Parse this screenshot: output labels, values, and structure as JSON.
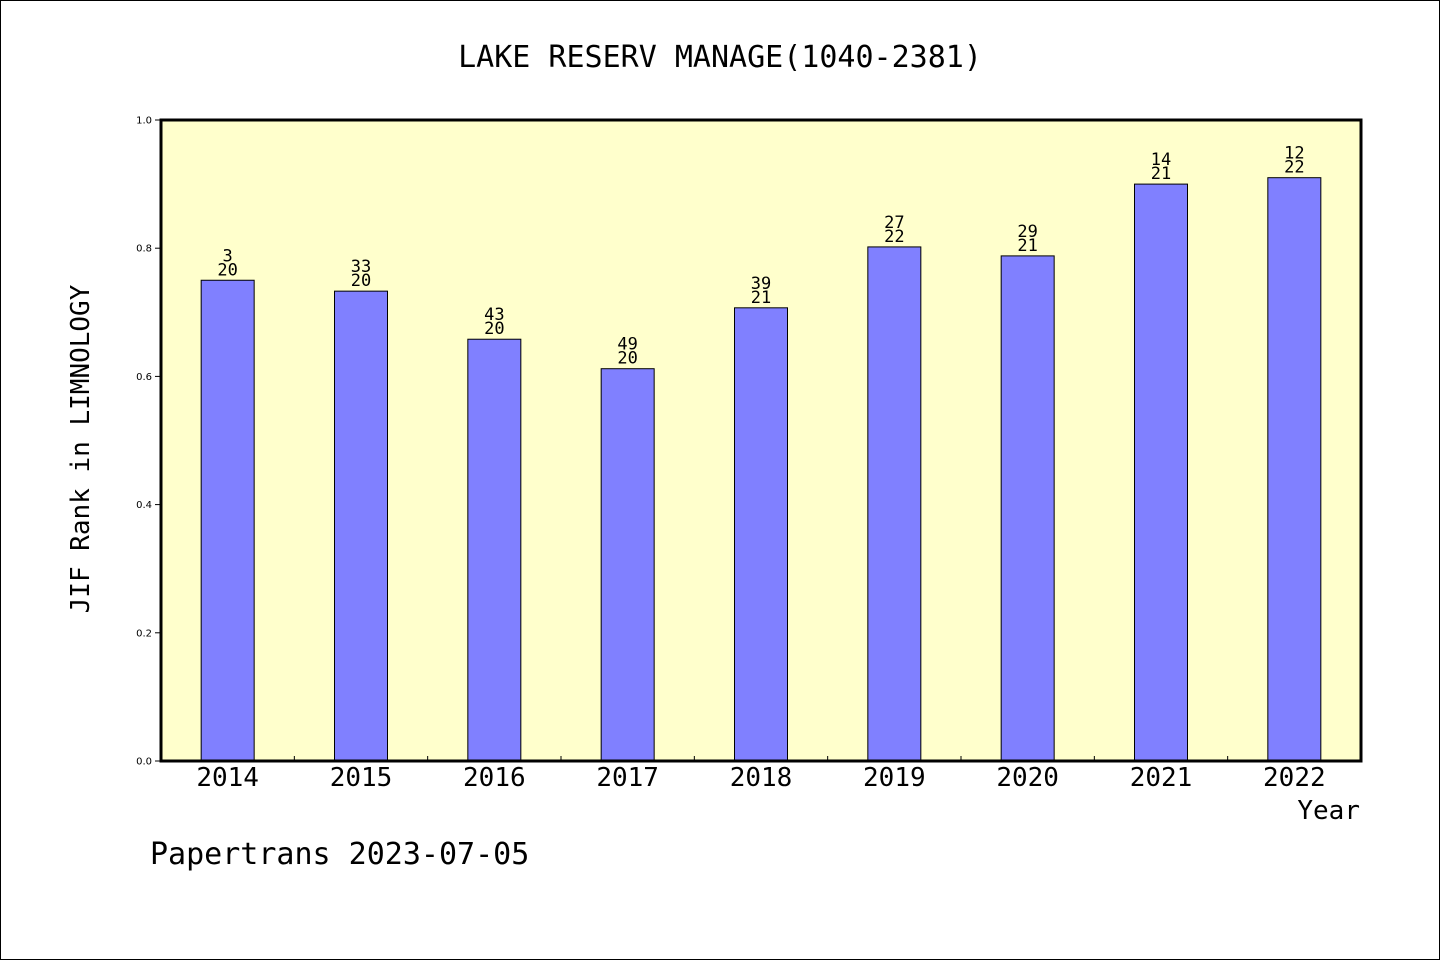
{
  "chart_data": {
    "type": "bar",
    "title": "LAKE RESERV MANAGE(1040-2381)",
    "xlabel": "Year",
    "ylabel": "JIF Rank in LIMNOLOGY",
    "ylim": [
      0,
      1.0
    ],
    "yticks": [
      "0.0",
      "0.2",
      "0.4",
      "0.6",
      "0.8",
      "1.0"
    ],
    "categories": [
      "2014",
      "2015",
      "2016",
      "2017",
      "2018",
      "2019",
      "2020",
      "2021",
      "2022"
    ],
    "values": [
      0.75,
      0.733,
      0.658,
      0.612,
      0.707,
      0.802,
      0.788,
      0.9,
      0.91
    ],
    "data_labels": [
      {
        "top": "3",
        "bottom": "20"
      },
      {
        "top": "33",
        "bottom": "20"
      },
      {
        "top": "43",
        "bottom": "20"
      },
      {
        "top": "49",
        "bottom": "20"
      },
      {
        "top": "39",
        "bottom": "21"
      },
      {
        "top": "27",
        "bottom": "22"
      },
      {
        "top": "29",
        "bottom": "21"
      },
      {
        "top": "14",
        "bottom": "21"
      },
      {
        "top": "12",
        "bottom": "22"
      }
    ],
    "grid": false,
    "colors": {
      "bar": "#8080ff",
      "plot_background": "#ffffcc",
      "axis": "#000000"
    }
  },
  "footer": "Papertrans 2023-07-05"
}
